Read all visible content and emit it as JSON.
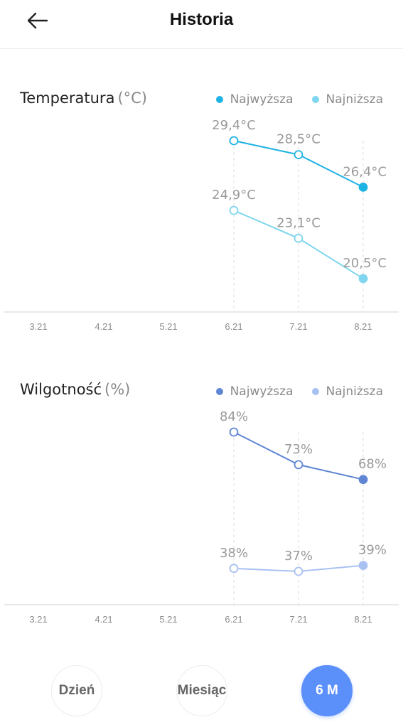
{
  "header": {
    "title": "Historia"
  },
  "temperature": {
    "title": "Temperatura",
    "unit": "(°C)",
    "legend": [
      {
        "label": "Najwyższa",
        "color": "#1fb3e3"
      },
      {
        "label": "Najniższa",
        "color": "#7fd6ee"
      }
    ],
    "chart_data": {
      "type": "line",
      "categories": [
        "3.21",
        "4.21",
        "5.21",
        "6.21",
        "7.21",
        "8.21"
      ],
      "series": [
        {
          "name": "Najwyższa",
          "values": [
            null,
            null,
            null,
            29.4,
            28.5,
            26.4
          ],
          "labels": [
            "",
            "",
            "",
            "29,4°C",
            "28,5°C",
            "26,4°C"
          ],
          "color": "#1fb3e3"
        },
        {
          "name": "Najniższa",
          "values": [
            null,
            null,
            null,
            24.9,
            23.1,
            20.5
          ],
          "labels": [
            "",
            "",
            "",
            "24,9°C",
            "23,1°C",
            "20,5°C"
          ],
          "color": "#7fd6ee"
        }
      ]
    }
  },
  "humidity": {
    "title": "Wilgotność",
    "unit": "(%)",
    "legend": [
      {
        "label": "Najwyższa",
        "color": "#5f86d4"
      },
      {
        "label": "Najniższa",
        "color": "#a9c1f2"
      }
    ],
    "chart_data": {
      "type": "line",
      "categories": [
        "3.21",
        "4.21",
        "5.21",
        "6.21",
        "7.21",
        "8.21"
      ],
      "series": [
        {
          "name": "Najwyższa",
          "values": [
            null,
            null,
            null,
            84,
            73,
            68
          ],
          "labels": [
            "",
            "",
            "",
            "84%",
            "73%",
            "68%"
          ],
          "color": "#5f86d4"
        },
        {
          "name": "Najniższa",
          "values": [
            null,
            null,
            null,
            38,
            37,
            39
          ],
          "labels": [
            "",
            "",
            "",
            "38%",
            "37%",
            "39%"
          ],
          "color": "#a9c1f2"
        }
      ]
    }
  },
  "range_buttons": [
    {
      "label": "Dzień",
      "active": false
    },
    {
      "label": "Miesiąc",
      "active": false
    },
    {
      "label": "6 M",
      "active": true
    }
  ]
}
